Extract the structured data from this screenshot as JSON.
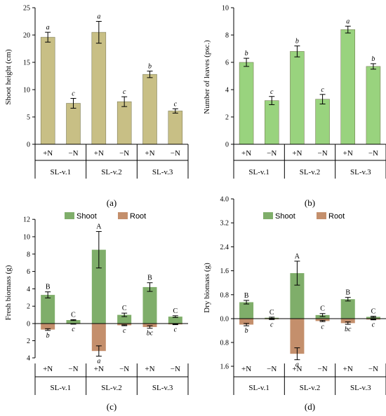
{
  "chart_data": [
    {
      "type": "bar",
      "panel_label": "(a)",
      "ylabel": "Shoot height (cm)",
      "ylim": [
        0,
        25
      ],
      "yticks": [
        "0",
        "5",
        "10",
        "15",
        "20",
        "25"
      ],
      "categories": [
        "+N",
        "−N",
        "+N",
        "−N",
        "+N",
        "−N"
      ],
      "groups": [
        "SL-v.1",
        "SL-v.2",
        "SL-v.3"
      ],
      "values": [
        19.6,
        7.5,
        20.5,
        7.8,
        12.8,
        6.1
      ],
      "errors": [
        0.9,
        0.9,
        2.0,
        0.9,
        0.6,
        0.4
      ],
      "letters": [
        "a",
        "c",
        "a",
        "c",
        "b",
        "c"
      ],
      "color": "#c8bf85"
    },
    {
      "type": "bar",
      "panel_label": "(b)",
      "ylabel": "Number of leaves (psc.)",
      "ylim": [
        0,
        10
      ],
      "yticks": [
        "0",
        "2",
        "4",
        "6",
        "8",
        "10"
      ],
      "categories": [
        "+N",
        "−N",
        "+N",
        "−N",
        "+N",
        "−N"
      ],
      "groups": [
        "SL-v.1",
        "SL-v.2",
        "SL-v.3"
      ],
      "values": [
        6.0,
        3.2,
        6.8,
        3.3,
        8.4,
        5.7
      ],
      "errors": [
        0.3,
        0.3,
        0.4,
        0.35,
        0.25,
        0.2
      ],
      "letters": [
        "b",
        "c",
        "b",
        "c",
        "a",
        "b"
      ],
      "color": "#99d37e"
    },
    {
      "type": "bar",
      "panel_label": "(c)",
      "ylabel": "Fresh biomass (g)",
      "yticks_top": [
        "0",
        "2",
        "4",
        "6",
        "8",
        "10",
        "12"
      ],
      "yticks_bottom": [
        "2",
        "4"
      ],
      "ylim": [
        -4,
        12
      ],
      "categories": [
        "+N",
        "−N",
        "+N",
        "−N",
        "+N",
        "−N"
      ],
      "groups": [
        "SL-v.1",
        "SL-v.2",
        "SL-v.3"
      ],
      "legend": [
        "Shoot",
        "Root"
      ],
      "series": [
        {
          "name": "Shoot",
          "values": [
            3.3,
            0.4,
            8.5,
            1.0,
            4.2,
            0.8
          ],
          "errors": [
            0.35,
            0.05,
            2.1,
            0.2,
            0.5,
            0.1
          ],
          "letters": [
            "B",
            "C",
            "A",
            "C",
            "B",
            "C"
          ],
          "color": "#7fae6a"
        },
        {
          "name": "Root",
          "values": [
            0.7,
            0.05,
            3.2,
            0.2,
            0.4,
            0.1
          ],
          "errors": [
            0.1,
            0.02,
            0.6,
            0.05,
            0.15,
            0.03
          ],
          "letters": [
            "b",
            "c",
            "a",
            "c",
            "bc",
            "c"
          ],
          "color": "#c48f6c"
        }
      ]
    },
    {
      "type": "bar",
      "panel_label": "(d)",
      "ylabel": "Dry biomass (g)",
      "yticks_top": [
        "0.0",
        "0.8",
        "1.6",
        "2.4",
        "3.2",
        "4.0"
      ],
      "yticks_bottom": [
        "0.8",
        "1.6"
      ],
      "ylim": [
        -1.6,
        4.0
      ],
      "categories": [
        "+N",
        "−N",
        "+N",
        "−N",
        "+N",
        "−N"
      ],
      "groups": [
        "SL-v.1",
        "SL-v.2",
        "SL-v.3"
      ],
      "legend": [
        "Shoot",
        "Root"
      ],
      "series": [
        {
          "name": "Shoot",
          "values": [
            0.55,
            0.03,
            1.52,
            0.12,
            0.65,
            0.06
          ],
          "errors": [
            0.06,
            0.02,
            0.4,
            0.05,
            0.06,
            0.02
          ],
          "letters": [
            "B",
            "C",
            "A",
            "C",
            "B",
            "C"
          ],
          "color": "#7fae6a"
        },
        {
          "name": "Root",
          "values": [
            0.2,
            0.02,
            1.18,
            0.08,
            0.15,
            0.03
          ],
          "errors": [
            0.04,
            0.01,
            0.2,
            0.02,
            0.04,
            0.01
          ],
          "letters": [
            "b",
            "c",
            "a",
            "c",
            "bc",
            "c"
          ],
          "color": "#c48f6c"
        }
      ]
    }
  ]
}
